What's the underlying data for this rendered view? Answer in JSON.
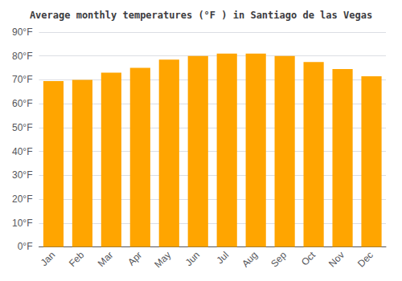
{
  "chart_data": {
    "type": "bar",
    "title": "Average monthly temperatures (°F ) in Santiago de las Vegas",
    "categories": [
      "Jan",
      "Feb",
      "Mar",
      "Apr",
      "May",
      "Jun",
      "Jul",
      "Aug",
      "Sep",
      "Oct",
      "Nov",
      "Dec"
    ],
    "values": [
      69.5,
      70,
      73,
      75,
      78.5,
      80,
      81,
      81,
      80,
      77.5,
      74.5,
      71.5
    ],
    "color": "#FFA500",
    "ylim": [
      0,
      90
    ],
    "yticks": [
      {
        "value": 0,
        "label": "0°F"
      },
      {
        "value": 10,
        "label": "10°F"
      },
      {
        "value": 20,
        "label": "20°F"
      },
      {
        "value": 30,
        "label": "30°F"
      },
      {
        "value": 40,
        "label": "40°F"
      },
      {
        "value": 50,
        "label": "50°F"
      },
      {
        "value": 60,
        "label": "60°F"
      },
      {
        "value": 70,
        "label": "70°F"
      },
      {
        "value": 80,
        "label": "80°F"
      },
      {
        "value": 90,
        "label": "90°F"
      }
    ],
    "grid": true
  }
}
